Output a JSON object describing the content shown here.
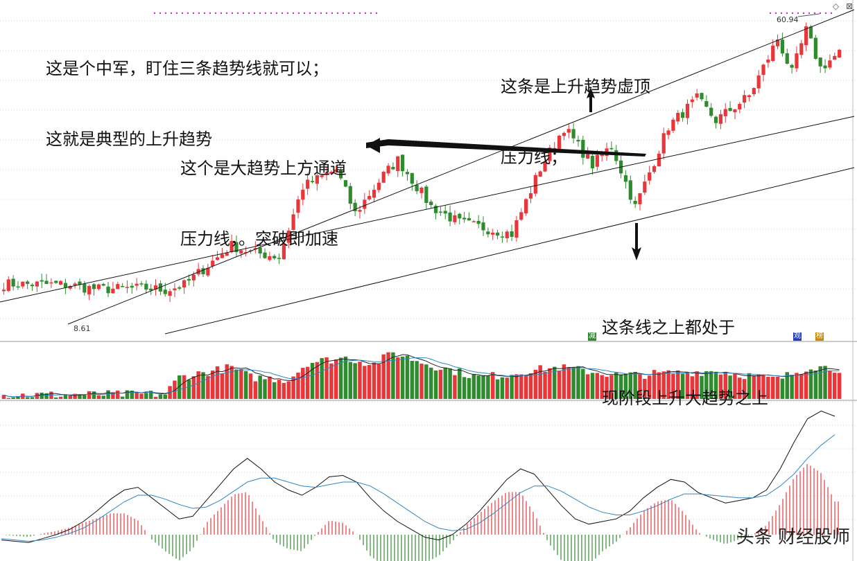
{
  "annotations": {
    "top_left": [
      "这是个中军，盯住三条趋势线就可以；",
      "这就是典型的上升趋势"
    ],
    "top_right": [
      "这条是上升趋势虚顶",
      "压力线；"
    ],
    "middle": [
      "这个是大趋势上方通道",
      "压力线，。突破即加速"
    ],
    "bottom_right": [
      "这条线之上都处于",
      "现阶段上升大趋势之上"
    ]
  },
  "labels": {
    "high": "60.94",
    "low": "8.61",
    "badge_jian": "减",
    "badge_xiaofang": "观",
    "badge_bang": "榜"
  },
  "watermark": "头条 财经股师",
  "icons": [
    "diamond-icon",
    "close-box-icon"
  ],
  "colors": {
    "up": "#e8363a",
    "down": "#2e8b2e",
    "ma_blue": "#2e86c1",
    "dif_black": "#111111",
    "dea_blue": "#2e86c1",
    "guide_magenta": "#d018d0"
  },
  "chart_data": [
    {
      "type": "candlestick",
      "title": "",
      "x_count": 177,
      "ylim": [
        0,
        65
      ],
      "high_label_value": 60.94,
      "low_label_value": 8.61,
      "segments": [
        [
          0,
          10.9
        ],
        [
          14,
          10.8
        ],
        [
          16,
          10.3
        ],
        [
          20,
          9.9
        ],
        [
          30,
          10.1
        ],
        [
          34,
          9.7
        ],
        [
          38,
          10.7
        ],
        [
          48,
          18.5
        ],
        [
          52,
          17.2
        ],
        [
          58,
          16.3
        ],
        [
          63,
          30.1
        ],
        [
          70,
          33.5
        ],
        [
          74,
          24.8
        ],
        [
          80,
          32.4
        ],
        [
          83,
          35.4
        ],
        [
          90,
          26.2
        ],
        [
          96,
          23.0
        ],
        [
          107,
          20.8
        ],
        [
          113,
          33.7
        ],
        [
          118,
          41.8
        ],
        [
          124,
          34.4
        ],
        [
          128,
          38.2
        ],
        [
          133,
          26.1
        ],
        [
          140,
          42.0
        ],
        [
          146,
          47.4
        ],
        [
          150,
          43.2
        ],
        [
          157,
          48.0
        ],
        [
          163,
          59.3
        ],
        [
          166,
          52.5
        ],
        [
          169,
          60.9
        ],
        [
          172,
          53.5
        ],
        [
          176,
          56.5
        ]
      ],
      "trend_lines": [
        {
          "name": "上升趋势虚顶压力线"
        },
        {
          "name": "大趋势上方通道压力线"
        },
        {
          "name": "上升大趋势支撑线"
        }
      ]
    },
    {
      "type": "bar",
      "title": "",
      "series": [
        {
          "values_note": "volume per candle, 0-100 relative"
        }
      ],
      "ylim": [
        0,
        100
      ],
      "levels": [
        [
          0,
          8
        ],
        [
          34,
          10
        ],
        [
          37,
          45
        ],
        [
          48,
          65
        ],
        [
          52,
          45
        ],
        [
          60,
          40
        ],
        [
          64,
          75
        ],
        [
          72,
          85
        ],
        [
          78,
          72
        ],
        [
          82,
          95
        ],
        [
          90,
          70
        ],
        [
          100,
          45
        ],
        [
          106,
          50
        ],
        [
          110,
          58
        ],
        [
          117,
          65
        ],
        [
          130,
          48
        ],
        [
          138,
          52
        ],
        [
          150,
          58
        ],
        [
          163,
          40
        ],
        [
          170,
          68
        ],
        [
          176,
          62
        ]
      ]
    },
    {
      "type": "line",
      "title": "",
      "series": [
        {
          "name": "",
          "values": [
            -4,
            -5,
            -6,
            -3,
            0,
            4,
            10,
            18,
            27,
            34,
            36,
            28,
            20,
            12,
            14,
            26,
            38,
            50,
            58,
            50,
            40,
            34,
            30,
            36,
            44,
            45,
            40,
            28,
            18,
            10,
            4,
            -2,
            -4,
            0,
            8,
            18,
            30,
            42,
            50,
            46,
            34,
            22,
            12,
            8,
            10,
            12,
            18,
            28,
            36,
            42,
            40,
            32,
            28,
            24,
            26,
            28,
            34,
            50,
            70,
            88,
            94,
            90
          ]
        },
        {
          "name": "",
          "values": [
            -3,
            -4,
            -5,
            -4,
            -2,
            1,
            5,
            11,
            18,
            25,
            30,
            30,
            27,
            23,
            20,
            21,
            26,
            33,
            40,
            43,
            43,
            40,
            37,
            36,
            38,
            40,
            40,
            37,
            31,
            24,
            17,
            10,
            5,
            3,
            4,
            9,
            16,
            24,
            32,
            37,
            37,
            33,
            27,
            21,
            17,
            15,
            15,
            18,
            22,
            27,
            31,
            31,
            30,
            29,
            28,
            28,
            30,
            37,
            46,
            58,
            68,
            76
          ]
        },
        {
          "name": "",
          "values": [
            0,
            -1,
            -2,
            1,
            3,
            6,
            10,
            14,
            18,
            18,
            12,
            -4,
            -14,
            -22,
            -12,
            10,
            22,
            34,
            36,
            14,
            -6,
            -12,
            -14,
            0,
            12,
            10,
            0,
            -18,
            -26,
            -28,
            -26,
            -24,
            -18,
            -6,
            8,
            18,
            28,
            36,
            36,
            18,
            -6,
            -22,
            -30,
            -26,
            -14,
            -6,
            6,
            20,
            28,
            30,
            18,
            2,
            -4,
            -8,
            -4,
            0,
            8,
            26,
            48,
            60,
            52,
            28
          ]
        }
      ]
    }
  ]
}
